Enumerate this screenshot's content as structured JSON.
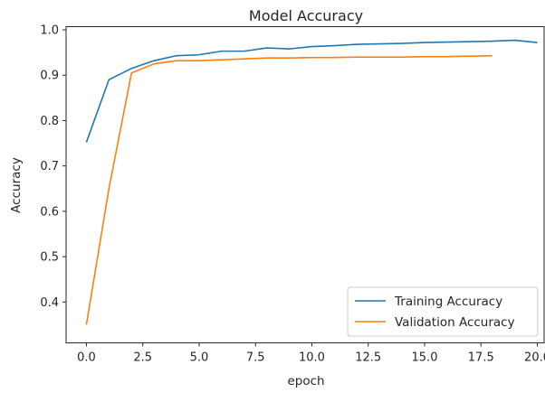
{
  "chart_data": {
    "type": "line",
    "title": "Model Accuracy",
    "xlabel": "epoch",
    "ylabel": "Accuracy",
    "xlim": [
      -0.9,
      20.3
    ],
    "ylim": [
      0.31,
      1.007
    ],
    "xticks": [
      0.0,
      2.5,
      5.0,
      7.5,
      10.0,
      12.5,
      15.0,
      17.5,
      20.0
    ],
    "xtick_labels": [
      "0.0",
      "2.5",
      "5.0",
      "7.5",
      "10.0",
      "12.5",
      "15.0",
      "17.5",
      "20.0"
    ],
    "yticks": [
      0.4,
      0.5,
      0.6,
      0.7,
      0.8,
      0.9,
      1.0
    ],
    "ytick_labels": [
      "0.4",
      "0.5",
      "0.6",
      "0.7",
      "0.8",
      "0.9",
      "1.0"
    ],
    "grid": false,
    "legend_position": "lower-right",
    "series": [
      {
        "name": "Training Accuracy",
        "color": "#1f77b4",
        "x": [
          0,
          1,
          2,
          3,
          4,
          5,
          6,
          7,
          8,
          9,
          10,
          11,
          12,
          13,
          14,
          15,
          16,
          17,
          18,
          19,
          20
        ],
        "values": [
          0.752,
          0.89,
          0.915,
          0.932,
          0.943,
          0.945,
          0.953,
          0.953,
          0.96,
          0.958,
          0.963,
          0.965,
          0.968,
          0.969,
          0.97,
          0.972,
          0.973,
          0.974,
          0.975,
          0.977,
          0.972
        ]
      },
      {
        "name": "Validation Accuracy",
        "color": "#ff7f0e",
        "x": [
          0,
          1,
          2,
          3,
          4,
          5,
          6,
          7,
          8,
          9,
          10,
          11,
          12,
          13,
          14,
          15,
          16,
          17,
          18
        ],
        "values": [
          0.35,
          0.65,
          0.905,
          0.925,
          0.932,
          0.932,
          0.934,
          0.936,
          0.938,
          0.938,
          0.939,
          0.939,
          0.94,
          0.94,
          0.94,
          0.941,
          0.941,
          0.942,
          0.943
        ]
      }
    ]
  }
}
